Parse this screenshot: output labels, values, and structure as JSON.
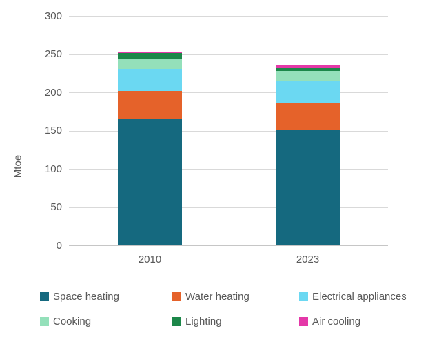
{
  "chart_data": {
    "type": "bar",
    "stacked": true,
    "title": "",
    "categories": [
      "2010",
      "2023"
    ],
    "series": [
      {
        "name": "Space heating",
        "color": "#15697f",
        "values": [
          165,
          151
        ]
      },
      {
        "name": "Water heating",
        "color": "#e5622a",
        "values": [
          37,
          35
        ]
      },
      {
        "name": "Electrical appliances",
        "color": "#6bd8f2",
        "values": [
          29,
          28
        ]
      },
      {
        "name": "Cooking",
        "color": "#94e0ba",
        "values": [
          12,
          14
        ]
      },
      {
        "name": "Lighting",
        "color": "#1c8749",
        "values": [
          8,
          4
        ]
      },
      {
        "name": "Air cooling",
        "color": "#e438a8",
        "values": [
          1,
          3
        ]
      }
    ],
    "xlabel": "",
    "ylabel": "Mtoe",
    "ylim": [
      0,
      300
    ],
    "yticks": [
      0,
      50,
      100,
      150,
      200,
      250,
      300
    ],
    "grid": true,
    "legend_position": "bottom"
  },
  "colors": {
    "gridline": "#d9d9d9",
    "baseline": "#c6c6c6",
    "text": "#595959",
    "background": "#ffffff"
  }
}
